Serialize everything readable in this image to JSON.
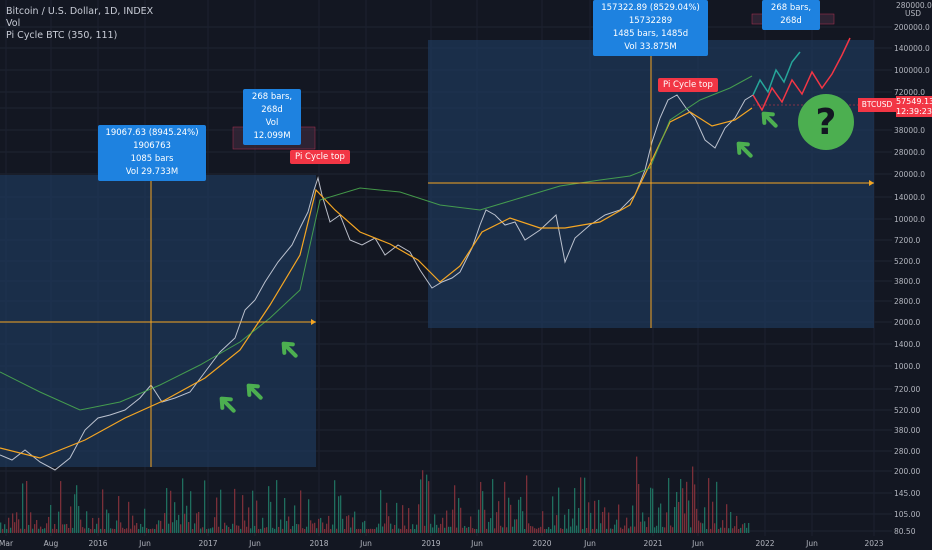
{
  "legend": {
    "symbol": "Bitcoin / U.S. Dollar, 1D, INDEX",
    "volume": "Vol",
    "indicator": "Pi Cycle BTC (350, 111)"
  },
  "axis": {
    "currency_top": "280000.0",
    "currency": "USD",
    "y_ticks": [
      "200000.0",
      "140000.0",
      "100000.0",
      "72000.0",
      "52000.0",
      "38000.0",
      "28000.0",
      "20000.0",
      "14000.0",
      "10000.0",
      "7200.0",
      "5200.0",
      "3800.0",
      "2800.0",
      "2000.0",
      "1400.0",
      "1000.0",
      "720.00",
      "520.00",
      "380.00",
      "280.00",
      "200.00",
      "145.00",
      "105.00",
      "80.50"
    ],
    "x_ticks": [
      "Mar",
      "Aug",
      "2016",
      "Jun",
      "2017",
      "Jun",
      "2018",
      "Jun",
      "2019",
      "Jun",
      "2020",
      "Jun",
      "2021",
      "Jun",
      "2022",
      "Jun",
      "2023"
    ]
  },
  "callouts": {
    "left": {
      "line1": "19067.63 (8945.24%) 1906763",
      "line2": "1085 bars",
      "line3": "Vol 29.733M"
    },
    "mid": {
      "line1": "268 bars, 268d",
      "line2": "Vol 12.099M"
    },
    "right": {
      "line1": "157322.89 (8529.04%) 15732289",
      "line2": "1485 bars, 1485d",
      "line3": "Vol 33.875M"
    },
    "top": {
      "line1": "268 bars, 268d"
    }
  },
  "tags": {
    "pi_top_1": "Pi Cycle top",
    "pi_top_2": "Pi Cycle top"
  },
  "price_badge": {
    "ticker": "BTCUSD",
    "price": "57549.13",
    "countdown": "12:39:23"
  },
  "question_mark": "?",
  "colors": {
    "background": "#131722",
    "box_fill": "#1e3a5f",
    "ma_long": "#4caf50",
    "ma_short": "#f5a623",
    "arrow": "#4caf50",
    "projection_green": "#26a69a",
    "projection_red": "#f23645",
    "tag": "#f23645",
    "callout": "#1e82e0"
  },
  "chart_data": {
    "type": "line",
    "scale": "log",
    "series": [
      {
        "x": [
          "2015-03",
          "2015-08",
          "2016-01",
          "2016-06",
          "2017-01",
          "2017-06",
          "2017-12",
          "2018-06",
          "2018-12",
          "2019-06",
          "2020-01",
          "2020-06",
          "2021-01",
          "2021-04",
          "2021-07",
          "2021-11"
        ],
        "values": [
          250,
          230,
          430,
          650,
          950,
          2500,
          19000,
          7000,
          3300,
          11000,
          7500,
          9500,
          33000,
          63000,
          34000,
          57549
        ]
      }
    ],
    "projections": [
      {
        "name": "",
        "x": [
          "2021-11",
          "2022-03"
        ],
        "values": [
          57549,
          125000
        ]
      },
      {
        "name": "",
        "x": [
          "2021-11",
          "2022-10"
        ],
        "values": [
          57549,
          160000
        ]
      }
    ],
    "annotations": [
      "Pi Cycle top",
      "Pi Cycle top"
    ]
  }
}
